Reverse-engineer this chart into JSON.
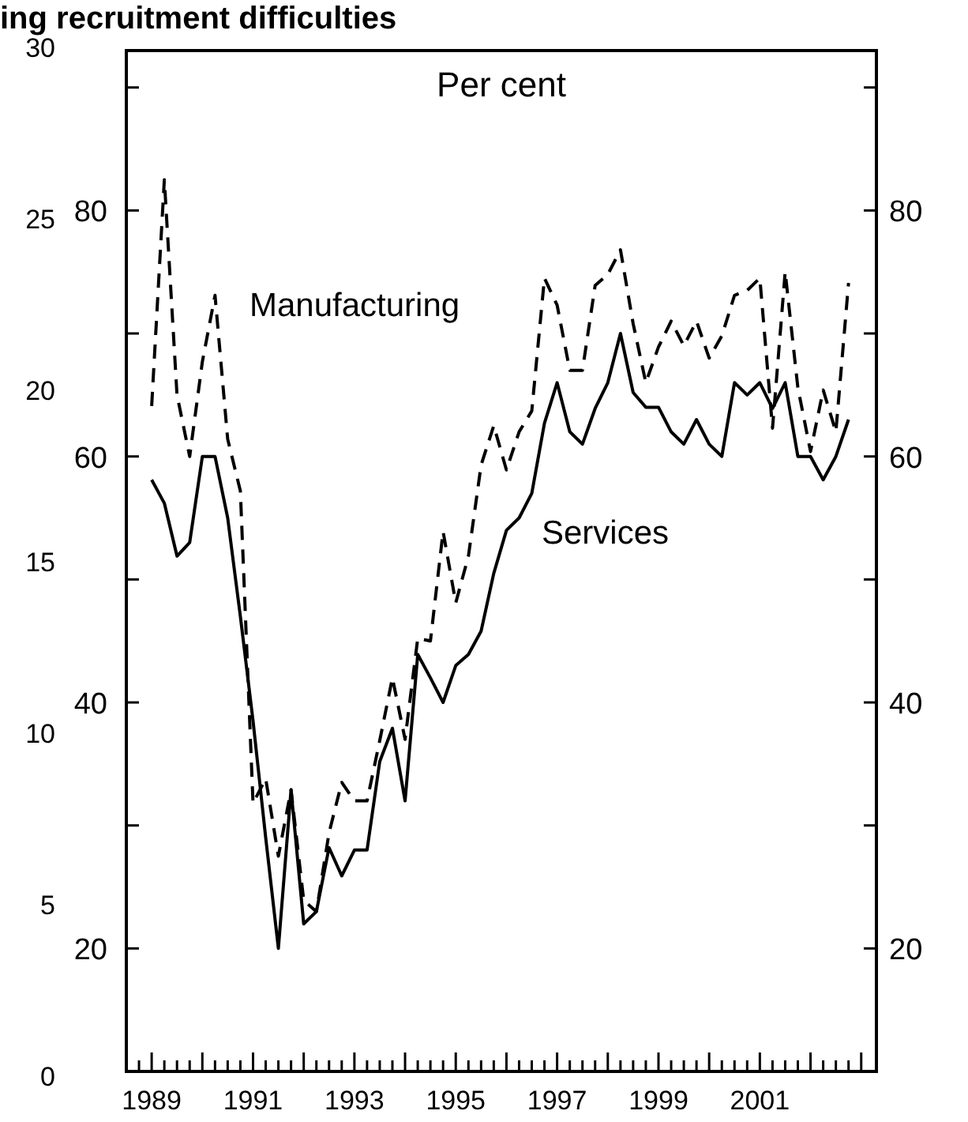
{
  "chart_data": {
    "type": "line",
    "title": "ing recruitment difficulties",
    "annotations": [
      "Per cent"
    ],
    "x": [
      1989,
      1989.25,
      1989.5,
      1989.75,
      1990,
      1990.25,
      1990.5,
      1990.75,
      1991,
      1991.25,
      1991.5,
      1991.75,
      1992,
      1992.25,
      1992.5,
      1992.75,
      1993,
      1993.25,
      1993.5,
      1993.75,
      1994,
      1994.25,
      1994.5,
      1994.75,
      1995,
      1995.25,
      1995.5,
      1995.75,
      1996,
      1996.25,
      1996.5,
      1996.75,
      1997,
      1997.25,
      1997.5,
      1997.75,
      1998,
      1998.25,
      1998.5,
      1998.75,
      1999,
      1999.25,
      1999.5,
      1999.75,
      2000,
      2000.25,
      2000.5,
      2000.75,
      2001,
      2001.25,
      2001.5,
      2001.75,
      2002,
      2002.25,
      2002.5,
      2002.75
    ],
    "series": [
      {
        "name": "Manufacturing",
        "color": "#000000",
        "line_style": "dashed",
        "values": [
          64.1,
          82.5,
          65,
          60,
          67.7,
          73.1,
          61.4,
          57.2,
          31.8,
          33.8,
          27.5,
          32.9,
          23.9,
          23,
          29.4,
          33.5,
          32,
          32,
          36.9,
          42,
          37,
          45.2,
          45,
          53.9,
          48.1,
          51.9,
          59.3,
          62.5,
          58.9,
          62,
          63.7,
          74.5,
          72.3,
          67,
          67,
          73.9,
          74.8,
          76.8,
          70.8,
          66,
          68.9,
          71,
          69,
          71,
          68,
          69.8,
          73.1,
          73.5,
          74.5,
          62.3,
          75,
          65.6,
          60.4,
          65.4,
          62,
          74.1
        ]
      },
      {
        "name": "Services",
        "color": "#000000",
        "line_style": "solid",
        "values": [
          58.1,
          56.2,
          51.9,
          53,
          60,
          60,
          55,
          47,
          38.5,
          29,
          20,
          32.9,
          22,
          23,
          28.2,
          25.9,
          28,
          28,
          35.2,
          37.9,
          32,
          43.9,
          42,
          40,
          43,
          43.9,
          45.8,
          50.5,
          54,
          55,
          57,
          62.7,
          66,
          62,
          61,
          63.9,
          66,
          70,
          65.2,
          64,
          64,
          62,
          61,
          63,
          61,
          60,
          66,
          65,
          66,
          63.9,
          66,
          60,
          60,
          58.1,
          60,
          63
        ]
      }
    ],
    "xlim": [
      1988.5,
      2003.3
    ],
    "xticks": [
      {
        "value": 1988.75,
        "label": null
      },
      {
        "value": 1989,
        "label": "1989"
      },
      {
        "value": 1989.25,
        "label": null
      },
      {
        "value": 1989.5,
        "label": null
      },
      {
        "value": 1989.75,
        "label": null
      },
      {
        "value": 1990,
        "label": null
      },
      {
        "value": 1990.25,
        "label": null
      },
      {
        "value": 1990.5,
        "label": null
      },
      {
        "value": 1990.75,
        "label": null
      },
      {
        "value": 1991,
        "label": "1991"
      },
      {
        "value": 1991.25,
        "label": null
      },
      {
        "value": 1991.5,
        "label": null
      },
      {
        "value": 1991.75,
        "label": null
      },
      {
        "value": 1992,
        "label": null
      },
      {
        "value": 1992.25,
        "label": null
      },
      {
        "value": 1992.5,
        "label": null
      },
      {
        "value": 1992.75,
        "label": null
      },
      {
        "value": 1993,
        "label": "1993"
      },
      {
        "value": 1993.25,
        "label": null
      },
      {
        "value": 1993.5,
        "label": null
      },
      {
        "value": 1993.75,
        "label": null
      },
      {
        "value": 1994,
        "label": null
      },
      {
        "value": 1994.25,
        "label": null
      },
      {
        "value": 1994.5,
        "label": null
      },
      {
        "value": 1994.75,
        "label": null
      },
      {
        "value": 1995,
        "label": "1995"
      },
      {
        "value": 1995.25,
        "label": null
      },
      {
        "value": 1995.5,
        "label": null
      },
      {
        "value": 1995.75,
        "label": null
      },
      {
        "value": 1996,
        "label": null
      },
      {
        "value": 1996.25,
        "label": null
      },
      {
        "value": 1996.5,
        "label": null
      },
      {
        "value": 1996.75,
        "label": null
      },
      {
        "value": 1997,
        "label": "1997"
      },
      {
        "value": 1997.25,
        "label": null
      },
      {
        "value": 1997.5,
        "label": null
      },
      {
        "value": 1997.75,
        "label": null
      },
      {
        "value": 1998,
        "label": null
      },
      {
        "value": 1998.25,
        "label": null
      },
      {
        "value": 1998.5,
        "label": null
      },
      {
        "value": 1998.75,
        "label": null
      },
      {
        "value": 1999,
        "label": "1999"
      },
      {
        "value": 1999.25,
        "label": null
      },
      {
        "value": 1999.5,
        "label": null
      },
      {
        "value": 1999.75,
        "label": null
      },
      {
        "value": 2000,
        "label": null
      },
      {
        "value": 2000.25,
        "label": null
      },
      {
        "value": 2000.5,
        "label": null
      },
      {
        "value": 2000.75,
        "label": null
      },
      {
        "value": 2001,
        "label": "2001"
      },
      {
        "value": 2001.25,
        "label": null
      },
      {
        "value": 2001.5,
        "label": null
      },
      {
        "value": 2001.75,
        "label": null
      },
      {
        "value": 2002,
        "label": null
      },
      {
        "value": 2002.25,
        "label": null
      },
      {
        "value": 2002.5,
        "label": null
      },
      {
        "value": 2002.75,
        "label": null
      },
      {
        "value": 2003,
        "label": null
      }
    ],
    "ylim": [
      10,
      93
    ],
    "yticks": [
      20,
      {
        "value": 30,
        "label": null
      },
      40,
      {
        "value": 50,
        "label": null
      },
      60,
      {
        "value": 70,
        "label": null
      },
      80,
      {
        "value": 90,
        "label": null
      }
    ],
    "y2lim": [
      10,
      93
    ],
    "y2ticks": [
      20,
      {
        "value": 30,
        "label": null
      },
      40,
      {
        "value": 50,
        "label": null
      },
      60,
      {
        "value": 70,
        "label": null
      },
      80,
      {
        "value": 90,
        "label": null
      }
    ],
    "y3lim": [
      0,
      30
    ],
    "y3ticks": [
      0,
      5,
      10,
      15,
      20,
      25,
      30
    ],
    "grid": false,
    "legend": false
  }
}
